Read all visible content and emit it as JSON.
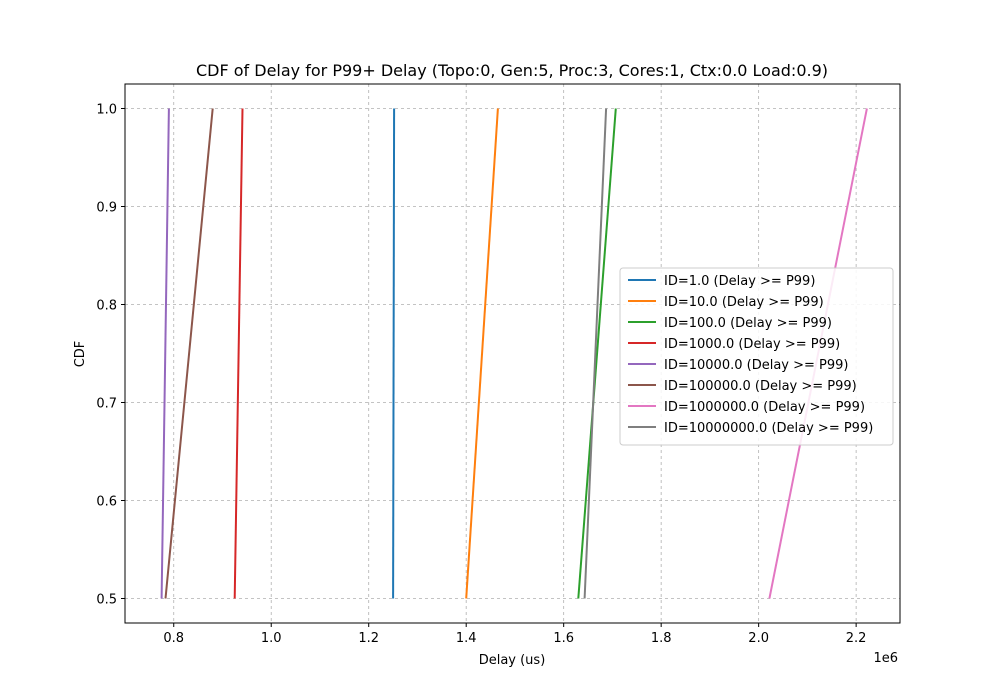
{
  "chart_data": {
    "type": "line",
    "title": "CDF of Delay for P99+ Delay (Topo:0, Gen:5, Proc:3, Cores:1, Ctx:0.0 Load:0.9)",
    "xlabel": "Delay (us)",
    "ylabel": "CDF",
    "x_offset_label": "1e6",
    "x_scale": 1000000,
    "xlim": [
      0.7,
      2.29
    ],
    "ylim": [
      0.475,
      1.025
    ],
    "x_ticks": [
      0.8,
      1.0,
      1.2,
      1.4,
      1.6,
      1.8,
      2.0,
      2.2
    ],
    "x_tick_labels": [
      "0.8",
      "1.0",
      "1.2",
      "1.4",
      "1.6",
      "1.8",
      "2.0",
      "2.2"
    ],
    "y_ticks": [
      0.5,
      0.6,
      0.7,
      0.8,
      0.9,
      1.0
    ],
    "y_tick_labels": [
      "0.5",
      "0.6",
      "0.7",
      "0.8",
      "0.9",
      "1.0"
    ],
    "grid": true,
    "legend_position": "center-right",
    "series": [
      {
        "name": "ID=1.0 (Delay >= P99)",
        "color": "#1f77b4",
        "x": [
          1.25,
          1.252
        ],
        "y": [
          0.5,
          1.0
        ]
      },
      {
        "name": "ID=10.0 (Delay >= P99)",
        "color": "#ff7f0e",
        "x": [
          1.4,
          1.465
        ],
        "y": [
          0.5,
          1.0
        ]
      },
      {
        "name": "ID=100.0 (Delay >= P99)",
        "color": "#2ca02c",
        "x": [
          1.63,
          1.707
        ],
        "y": [
          0.5,
          1.0
        ]
      },
      {
        "name": "ID=1000.0 (Delay >= P99)",
        "color": "#d62728",
        "x": [
          0.925,
          0.941
        ],
        "y": [
          0.5,
          1.0
        ]
      },
      {
        "name": "ID=10000.0 (Delay >= P99)",
        "color": "#9467bd",
        "x": [
          0.775,
          0.79
        ],
        "y": [
          0.5,
          1.0
        ]
      },
      {
        "name": "ID=100000.0 (Delay >= P99)",
        "color": "#8c564b",
        "x": [
          0.783,
          0.88
        ],
        "y": [
          0.5,
          1.0
        ]
      },
      {
        "name": "ID=1000000.0 (Delay >= P99)",
        "color": "#e377c2",
        "x": [
          2.022,
          2.222
        ],
        "y": [
          0.5,
          1.0
        ]
      },
      {
        "name": "ID=10000000.0 (Delay >= P99)",
        "color": "#7f7f7f",
        "x": [
          1.643,
          1.687
        ],
        "y": [
          0.5,
          1.0
        ]
      }
    ]
  }
}
